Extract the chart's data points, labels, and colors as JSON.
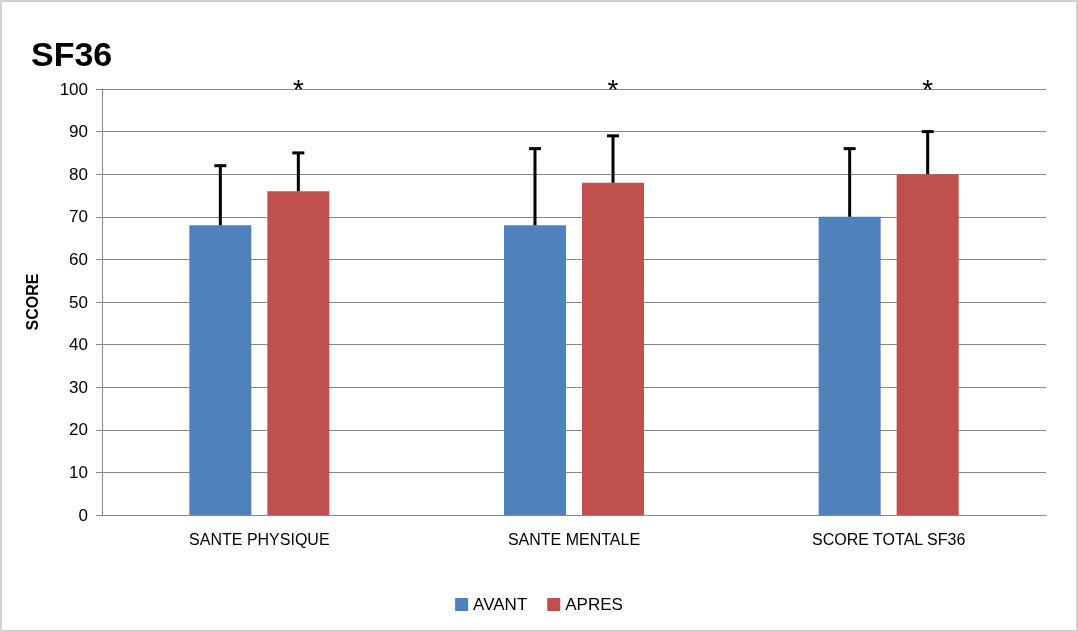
{
  "chart_data": {
    "type": "bar",
    "title": "SF36",
    "ylabel": "SCORE",
    "categories": [
      "SANTE PHYSIQUE",
      "SANTE MENTALE",
      "SCORE TOTAL SF36"
    ],
    "series": [
      {
        "name": "AVANT",
        "color": "#4f81bd",
        "values": [
          68,
          68,
          70
        ],
        "errors": [
          [
            68,
            82
          ],
          [
            68,
            86
          ],
          [
            70,
            86
          ]
        ]
      },
      {
        "name": "APRES",
        "color": "#c0504d",
        "values": [
          76,
          78,
          80
        ],
        "errors": [
          [
            76,
            85
          ],
          [
            78,
            89
          ],
          [
            80,
            90
          ]
        ]
      }
    ],
    "ylim": [
      0,
      100
    ],
    "yticks": [
      0,
      10,
      20,
      30,
      40,
      50,
      60,
      70,
      80,
      90,
      100
    ],
    "grid": "y",
    "legend": "bottom",
    "annotations": [
      "*",
      "*",
      "*"
    ]
  }
}
